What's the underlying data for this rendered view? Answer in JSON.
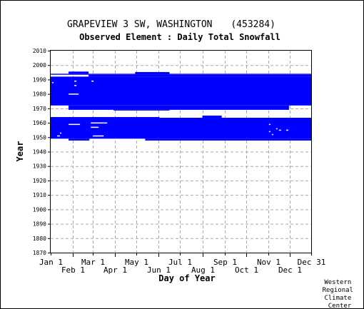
{
  "chart_data": {
    "type": "table",
    "title": "GRAPEVIEW 3 SW, WASHINGTON",
    "station_id": "(453284)",
    "subtitle": "Observed Element : Daily Total Snowfall",
    "xlabel": "Day of Year",
    "ylabel": "Year",
    "ylim": [
      1870,
      2010
    ],
    "y_ticks": [
      1870,
      1880,
      1890,
      1900,
      1910,
      1920,
      1930,
      1940,
      1950,
      1960,
      1970,
      1980,
      1990,
      2000,
      2010
    ],
    "x_ticks_row1": [
      {
        "label": "Jan 1",
        "day": 1
      },
      {
        "label": "Mar 1",
        "day": 60
      },
      {
        "label": "May 1",
        "day": 121
      },
      {
        "label": "Jul 1",
        "day": 182
      },
      {
        "label": "Sep 1",
        "day": 244
      },
      {
        "label": "Nov 1",
        "day": 305
      },
      {
        "label": "Dec 31",
        "day": 365
      }
    ],
    "x_ticks_row2": [
      {
        "label": "Feb 1",
        "day": 32
      },
      {
        "label": "Apr 1",
        "day": 91
      },
      {
        "label": "Jun 1",
        "day": 152
      },
      {
        "label": "Aug 1",
        "day": 213
      },
      {
        "label": "Oct 1",
        "day": 274
      },
      {
        "label": "Dec 1",
        "day": 335
      }
    ],
    "grid": true,
    "series_color": "#0000ff",
    "observed_periods": [
      {
        "day_start": 1,
        "day_end": 365,
        "year_start": 1972,
        "year_end": 1992
      },
      {
        "day_start": 1,
        "day_end": 365,
        "year_start": 1993.3,
        "year_end": 1994
      },
      {
        "day_start": 26,
        "day_end": 54,
        "year_start": 1994,
        "year_end": 1995.5
      },
      {
        "day_start": 54,
        "day_end": 365,
        "year_start": 1992,
        "year_end": 1993.3
      },
      {
        "day_start": 119,
        "day_end": 167,
        "year_start": 1993.3,
        "year_end": 1995.2
      },
      {
        "day_start": 26,
        "day_end": 334,
        "year_start": 1969,
        "year_end": 1972
      },
      {
        "day_start": 89,
        "day_end": 167,
        "year_start": 1968.5,
        "year_end": 1969
      },
      {
        "day_start": 1,
        "day_end": 365,
        "year_start": 1949,
        "year_end": 1963.5
      },
      {
        "day_start": 1,
        "day_end": 153,
        "year_start": 1963.5,
        "year_end": 1964
      },
      {
        "day_start": 213,
        "day_end": 240,
        "year_start": 1963.5,
        "year_end": 1965
      },
      {
        "day_start": 133,
        "day_end": 365,
        "year_start": 1947.7,
        "year_end": 1949
      },
      {
        "day_start": 26,
        "day_end": 55,
        "year_start": 1947.7,
        "year_end": 1949
      }
    ],
    "missing_marks": [
      {
        "day_start": 26,
        "day_end": 42,
        "year": 1959
      },
      {
        "day_start": 57,
        "day_end": 80,
        "year": 1960
      },
      {
        "day_start": 57,
        "day_end": 68,
        "year": 1957
      },
      {
        "day_start": 60,
        "day_end": 75,
        "year": 1951
      },
      {
        "day_start": 10,
        "day_end": 14,
        "year": 1951
      },
      {
        "day_start": 14,
        "day_end": 16,
        "year": 1953
      },
      {
        "day_start": 26,
        "day_end": 40,
        "year": 1980
      },
      {
        "day_start": 34,
        "day_end": 37,
        "year": 1986
      },
      {
        "day_start": 3,
        "day_end": 5,
        "year": 1988
      },
      {
        "day_start": 34,
        "day_end": 37,
        "year": 1989
      },
      {
        "day_start": 58,
        "day_end": 61,
        "year": 1989
      },
      {
        "day_start": 306,
        "day_end": 308,
        "year": 1954
      },
      {
        "day_start": 306,
        "day_end": 308,
        "year": 1959
      },
      {
        "day_start": 310,
        "day_end": 312,
        "year": 1952
      },
      {
        "day_start": 316,
        "day_end": 318,
        "year": 1956
      },
      {
        "day_start": 320,
        "day_end": 323,
        "year": 1955
      },
      {
        "day_start": 330,
        "day_end": 333,
        "year": 1955
      }
    ]
  },
  "credit": [
    "Western",
    "Regional",
    "Climate",
    "Center"
  ]
}
